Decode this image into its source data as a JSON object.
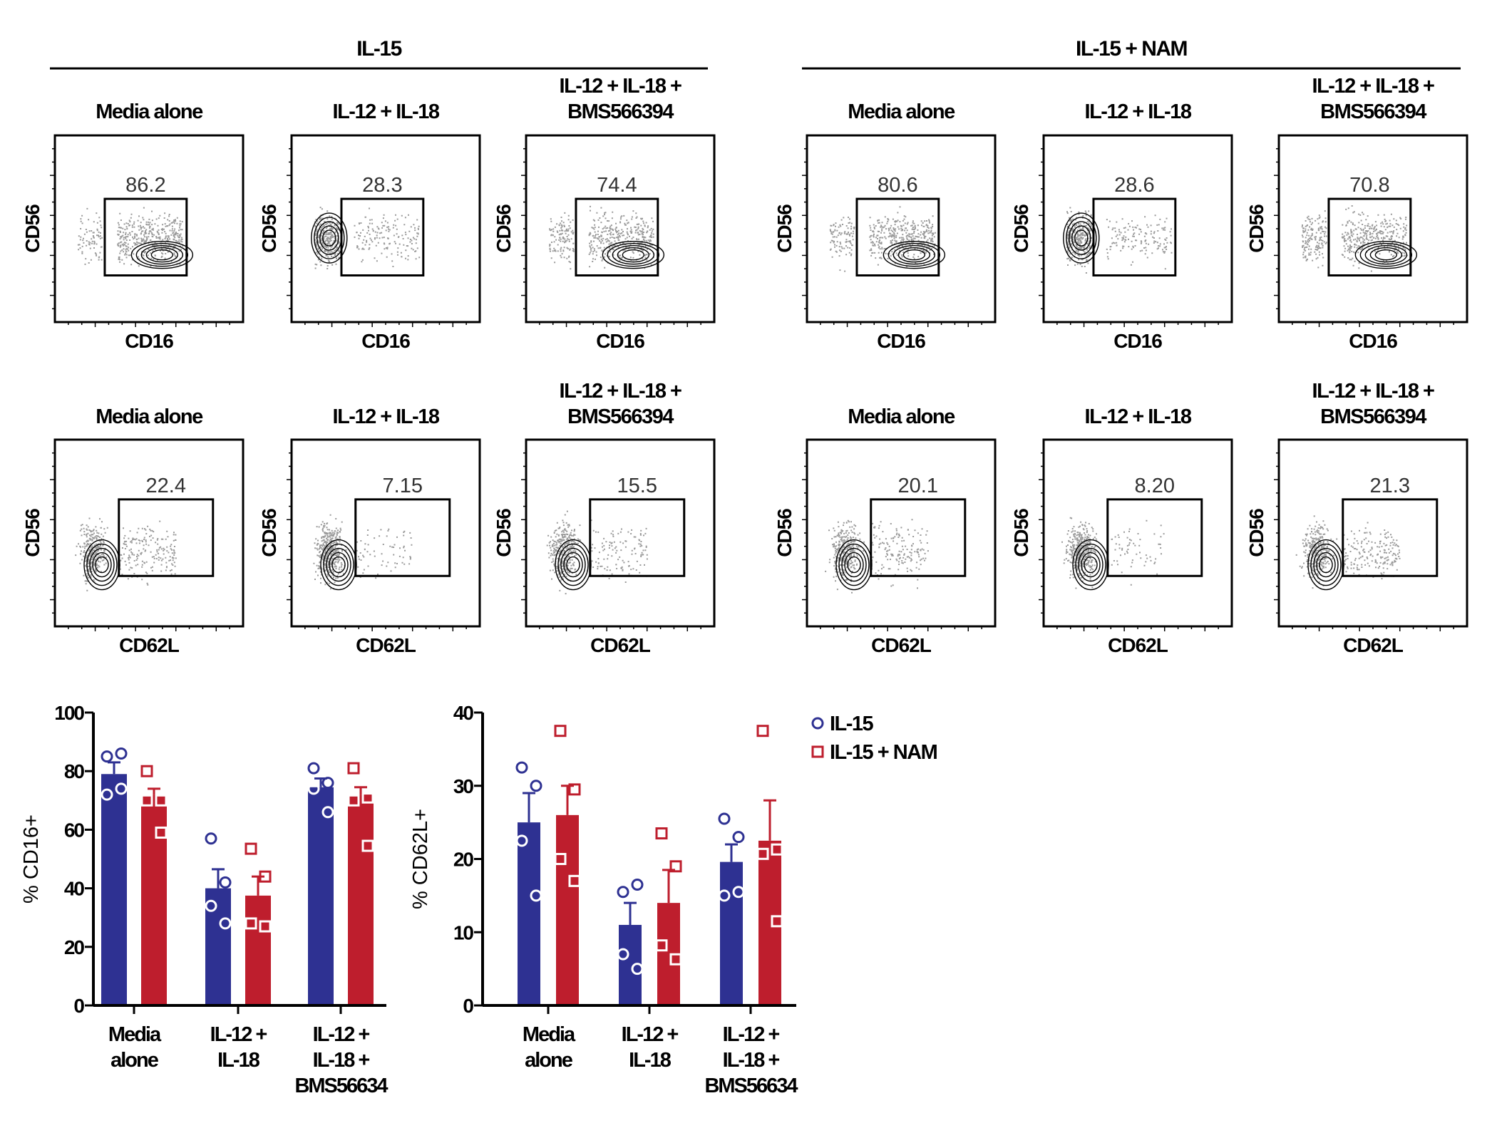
{
  "figure": {
    "groups": [
      {
        "header": "IL-15"
      },
      {
        "header": "IL-15 + NAM"
      }
    ],
    "panel_titles": [
      "Media alone",
      "IL-12 + IL-18",
      "IL-12 + IL-18 +",
      "BMS566394"
    ],
    "row1": {
      "x_label": "CD16",
      "y_label": "CD56",
      "gate_values": [
        [
          "86.2",
          "28.3",
          "74.4"
        ],
        [
          "80.6",
          "28.6",
          "70.8"
        ]
      ]
    },
    "row2": {
      "x_label": "CD62L",
      "y_label": "CD56",
      "gate_values": [
        [
          "22.4",
          "7.15",
          "15.5"
        ],
        [
          "20.1",
          "8.20",
          "21.3"
        ]
      ]
    }
  },
  "legend": {
    "items": [
      {
        "label": "IL-15",
        "marker": "circle",
        "color": "#2e3192"
      },
      {
        "label": "IL-15 + NAM",
        "marker": "square",
        "color": "#be1e2d"
      }
    ]
  },
  "chart_data": [
    {
      "type": "bar",
      "ylabel": "% CD16+",
      "ylabel_text": "% CD16",
      "ylabel_sup": "+",
      "ylim": [
        0,
        100
      ],
      "yticks": [
        "0",
        "20",
        "40",
        "60",
        "80",
        "100"
      ],
      "categories": [
        [
          "Media",
          "alone"
        ],
        [
          "IL-12 +",
          "IL-18"
        ],
        [
          "IL-12 +",
          "IL-18 +",
          "BMS56634"
        ]
      ],
      "series": [
        {
          "name": "IL-15",
          "color": "#2e3192",
          "values": [
            79,
            40,
            74.5
          ],
          "error_upper": [
            83,
            46.5,
            77.5
          ],
          "points": [
            [
              85,
              86,
              72,
              74
            ],
            [
              57,
              42,
              34,
              28
            ],
            [
              81,
              76,
              74,
              66
            ]
          ]
        },
        {
          "name": "IL-15 + NAM",
          "color": "#be1e2d",
          "values": [
            72,
            37.5,
            72
          ],
          "error_upper": [
            74,
            44,
            74.5
          ],
          "points": [
            [
              80,
              70,
              70,
              59
            ],
            [
              53.5,
              44,
              28,
              27
            ],
            [
              81,
              71,
              70,
              54.5
            ]
          ]
        }
      ]
    },
    {
      "type": "bar",
      "ylabel": "% CD62L+",
      "ylabel_text": "% CD62L",
      "ylabel_sup": "+",
      "ylim": [
        0,
        40
      ],
      "yticks": [
        "0",
        "10",
        "20",
        "30",
        "40"
      ],
      "categories": [
        [
          "Media",
          "alone"
        ],
        [
          "IL-12 +",
          "IL-18"
        ],
        [
          "IL-12 +",
          "IL-18 +",
          "BMS56634"
        ]
      ],
      "series": [
        {
          "name": "IL-15",
          "color": "#2e3192",
          "values": [
            25,
            11,
            19.6
          ],
          "error_upper": [
            29,
            14,
            22
          ],
          "points": [
            [
              32.5,
              30,
              22.5,
              15
            ],
            [
              15.5,
              16.5,
              7,
              5
            ],
            [
              25.5,
              23,
              15,
              15.5
            ]
          ]
        },
        {
          "name": "IL-15 + NAM",
          "color": "#be1e2d",
          "values": [
            26,
            14,
            22.5
          ],
          "error_upper": [
            30,
            18.5,
            28
          ],
          "points": [
            [
              37.5,
              29.5,
              20,
              17
            ],
            [
              23.5,
              19,
              8.2,
              6.3
            ],
            [
              37.5,
              21.3,
              20.7,
              11.5
            ]
          ]
        }
      ]
    }
  ]
}
